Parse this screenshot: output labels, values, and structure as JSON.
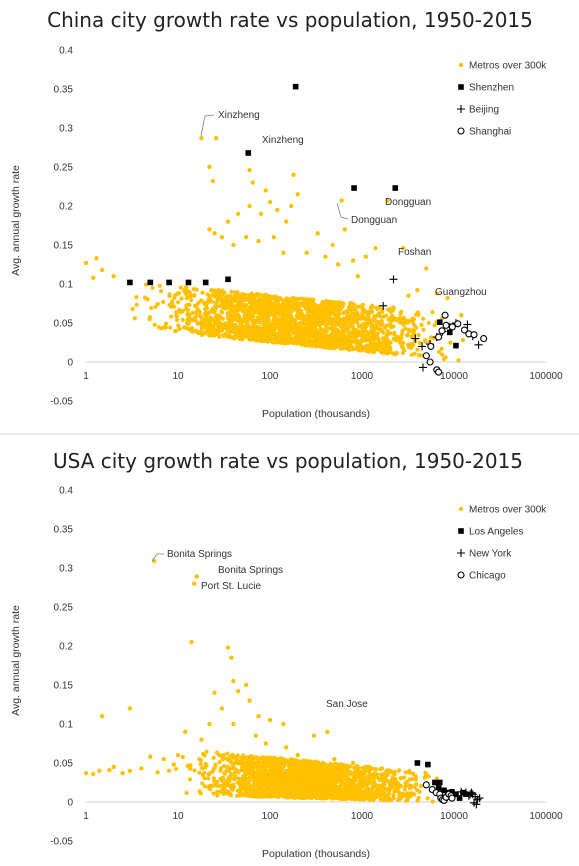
{
  "chart_data": [
    {
      "type": "scatter",
      "title": "China city growth rate vs population, 1950-2015",
      "xlabel": "Population (thousands)",
      "ylabel": "Avg. annual growth rate",
      "xscale": "log",
      "xlim": [
        1,
        100000
      ],
      "ylim": [
        -0.05,
        0.4
      ],
      "xticks": [
        "1",
        "10",
        "100",
        "1000",
        "10000",
        "100000"
      ],
      "yticks": [
        "0.4",
        "0.35",
        "0.3",
        "0.25",
        "0.2",
        "0.15",
        "0.1",
        "0.05",
        "0",
        "-0.05"
      ],
      "grid": false,
      "legend_position": "top-right",
      "series": [
        {
          "name": "Metros over 300k",
          "marker": "dot",
          "color": "#FFC000",
          "points": [
            [
              18,
              0.287
            ],
            [
              26,
              0.287
            ],
            [
              22,
              0.25
            ],
            [
              24,
              0.232
            ],
            [
              60,
              0.246
            ],
            [
              65,
              0.23
            ],
            [
              180,
              0.24
            ],
            [
              200,
              0.215
            ],
            [
              90,
              0.22
            ],
            [
              150,
              0.18
            ],
            [
              170,
              0.2
            ],
            [
              120,
              0.195
            ],
            [
              100,
              0.205
            ],
            [
              80,
              0.19
            ],
            [
              60,
              0.2
            ],
            [
              45,
              0.19
            ],
            [
              35,
              0.18
            ],
            [
              30,
              0.16
            ],
            [
              25,
              0.165
            ],
            [
              22,
              0.17
            ],
            [
              40,
              0.15
            ],
            [
              55,
              0.16
            ],
            [
              75,
              0.155
            ],
            [
              110,
              0.16
            ],
            [
              140,
              0.14
            ],
            [
              250,
              0.14
            ],
            [
              330,
              0.165
            ],
            [
              400,
              0.135
            ],
            [
              480,
              0.15
            ],
            [
              550,
              0.125
            ],
            [
              650,
              0.17
            ],
            [
              600,
              0.207
            ],
            [
              800,
              0.13
            ],
            [
              900,
              0.11
            ],
            [
              1100,
              0.135
            ],
            [
              1400,
              0.146
            ],
            [
              1900,
              0.207
            ],
            [
              2800,
              0.146
            ],
            [
              4000,
              0.092
            ],
            [
              5000,
              0.12
            ],
            [
              3200,
              0.085
            ],
            [
              6500,
              0.088
            ],
            [
              8500,
              0.082
            ],
            [
              12000,
              0.06
            ],
            [
              1,
              0.127
            ],
            [
              1.3,
              0.133
            ],
            [
              1.5,
              0.118
            ],
            [
              2,
              0.11
            ],
            [
              1.2,
              0.108
            ]
          ],
          "band": {
            "x_min": 2.2,
            "x_max": 16000,
            "y_top_left": 0.105,
            "y_bottom_left": 0.045,
            "y_top_right": 0.06,
            "y_bottom_right": 0.0
          }
        },
        {
          "name": "Shenzhen",
          "marker": "square",
          "color": "#000000",
          "points": [
            [
              3,
              0.102
            ],
            [
              5,
              0.102
            ],
            [
              8,
              0.102
            ],
            [
              13,
              0.102
            ],
            [
              20,
              0.102
            ],
            [
              35,
              0.106
            ],
            [
              58,
              0.268
            ],
            [
              190,
              0.353
            ],
            [
              820,
              0.223
            ],
            [
              2300,
              0.223
            ],
            [
              7000,
              0.051
            ],
            [
              9000,
              0.038
            ],
            [
              10500,
              0.021
            ]
          ]
        },
        {
          "name": "Beijing",
          "marker": "plus",
          "color": "#000000",
          "points": [
            [
              2200,
              0.106
            ],
            [
              1700,
              0.072
            ],
            [
              3800,
              0.03
            ],
            [
              4500,
              0.02
            ],
            [
              5500,
              0.023
            ],
            [
              6500,
              0.032
            ],
            [
              7500,
              0.039
            ],
            [
              9000,
              0.045
            ],
            [
              10500,
              0.05
            ],
            [
              14000,
              0.048
            ],
            [
              16000,
              0.033
            ],
            [
              18500,
              0.022
            ],
            [
              4600,
              -0.007
            ]
          ]
        },
        {
          "name": "Shanghai",
          "marker": "circle",
          "color": "#000000",
          "points": [
            [
              5500,
              0.0
            ],
            [
              6500,
              -0.01
            ],
            [
              6800,
              -0.013
            ],
            [
              5000,
              0.008
            ],
            [
              5600,
              0.02
            ],
            [
              6800,
              0.032
            ],
            [
              7400,
              0.04
            ],
            [
              8200,
              0.047
            ],
            [
              9600,
              0.045
            ],
            [
              11000,
              0.049
            ],
            [
              13000,
              0.041
            ],
            [
              14500,
              0.036
            ],
            [
              16500,
              0.035
            ],
            [
              21000,
              0.03
            ],
            [
              8000,
              0.06
            ]
          ]
        }
      ],
      "annotations": [
        "Xinzheng",
        "Xinzheng",
        "Dongguan",
        "Dongguan",
        "Foshan",
        "Guangzhou"
      ]
    },
    {
      "type": "scatter",
      "title": "USA city growth rate vs population, 1950-2015",
      "xlabel": "Population (thousands)",
      "ylabel": "Avg. annual growth rate",
      "xscale": "log",
      "xlim": [
        1,
        100000
      ],
      "ylim": [
        -0.05,
        0.4
      ],
      "xticks": [
        "1",
        "10",
        "100",
        "1000",
        "10000",
        "100000"
      ],
      "yticks": [
        "0.4",
        "0.35",
        "0.3",
        "0.25",
        "0.2",
        "0.15",
        "0.1",
        "0.05",
        "0",
        "-0.05"
      ],
      "grid": false,
      "legend_position": "top-right",
      "series": [
        {
          "name": "Metros over 300k",
          "marker": "dot",
          "color": "#FFC000",
          "points": [
            [
              5.5,
              0.309
            ],
            [
              16,
              0.289
            ],
            [
              15,
              0.28
            ],
            [
              14,
              0.205
            ],
            [
              35,
              0.198
            ],
            [
              38,
              0.185
            ],
            [
              40,
              0.155
            ],
            [
              45,
              0.142
            ],
            [
              25,
              0.14
            ],
            [
              55,
              0.15
            ],
            [
              60,
              0.13
            ],
            [
              75,
              0.11
            ],
            [
              100,
              0.105
            ],
            [
              140,
              0.1
            ],
            [
              300,
              0.085
            ],
            [
              420,
              0.09
            ],
            [
              3,
              0.12
            ],
            [
              1.5,
              0.11
            ],
            [
              1,
              0.037
            ],
            [
              1.2,
              0.036
            ],
            [
              1.4,
              0.04
            ],
            [
              2,
              0.045
            ],
            [
              3,
              0.04
            ],
            [
              4,
              0.043
            ],
            [
              6,
              0.038
            ],
            [
              8,
              0.04
            ],
            [
              12,
              0.09
            ],
            [
              18,
              0.08
            ],
            [
              22,
              0.1
            ],
            [
              30,
              0.12
            ],
            [
              10,
              0.06
            ],
            [
              7,
              0.055
            ],
            [
              5,
              0.058
            ],
            [
              40,
              0.1
            ],
            [
              70,
              0.085
            ],
            [
              90,
              0.075
            ],
            [
              150,
              0.07
            ],
            [
              200,
              0.06
            ],
            [
              500,
              0.055
            ],
            [
              800,
              0.05
            ],
            [
              1200,
              0.045
            ],
            [
              2000,
              0.04
            ],
            [
              3000,
              0.038
            ],
            [
              5000,
              0.035
            ],
            [
              6500,
              0.03
            ],
            [
              1.8,
              0.041
            ],
            [
              2.5,
              0.037
            ],
            [
              9,
              0.048
            ]
          ],
          "band": {
            "x_min": 8,
            "x_max": 9000,
            "y_top_left": 0.07,
            "y_bottom_left": 0.01,
            "y_top_right": 0.035,
            "y_bottom_right": 0.0
          }
        },
        {
          "name": "Los Angeles",
          "marker": "square",
          "color": "#000000",
          "points": [
            [
              4000,
              0.05
            ],
            [
              5200,
              0.048
            ],
            [
              6200,
              0.025
            ],
            [
              7000,
              0.025
            ],
            [
              7800,
              0.015
            ],
            [
              8500,
              0.012
            ],
            [
              9500,
              0.013
            ],
            [
              10500,
              0.01
            ],
            [
              11500,
              0.005
            ],
            [
              12500,
              0.012
            ],
            [
              13500,
              0.01
            ],
            [
              8000,
              0.005
            ],
            [
              6800,
              0.018
            ]
          ]
        },
        {
          "name": "New York",
          "marker": "plus",
          "color": "#000000",
          "points": [
            [
              12000,
              0.013
            ],
            [
              13500,
              0.012
            ],
            [
              15000,
              0.01
            ],
            [
              16000,
              0.01
            ],
            [
              17000,
              0.007
            ],
            [
              18000,
              0.003
            ],
            [
              19000,
              0.005
            ],
            [
              16500,
              -0.001
            ],
            [
              17500,
              -0.003
            ],
            [
              15500,
              0.012
            ],
            [
              14500,
              0.008
            ]
          ]
        },
        {
          "name": "Chicago",
          "marker": "circle",
          "color": "#000000",
          "points": [
            [
              5000,
              0.022
            ],
            [
              5800,
              0.016
            ],
            [
              6400,
              0.012
            ],
            [
              7000,
              0.01
            ],
            [
              7200,
              0.005
            ],
            [
              7500,
              0.003
            ],
            [
              7800,
              0.002
            ],
            [
              8200,
              0.006
            ],
            [
              8800,
              0.01
            ],
            [
              9300,
              0.008
            ],
            [
              9500,
              0.005
            ]
          ]
        }
      ],
      "annotations": [
        "Bonita Springs",
        "Bonita Springs",
        "Port St. Lucie",
        "San Jose"
      ]
    }
  ]
}
